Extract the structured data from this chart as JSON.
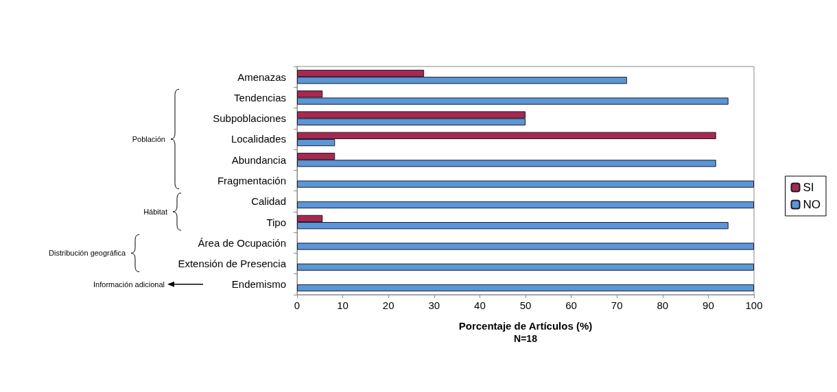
{
  "chart_data": {
    "type": "bar",
    "orientation": "horizontal",
    "xlabel": "Porcentaje de Artículos (%)",
    "categories": [
      "Amenazas",
      "Tendencias",
      "Subpoblaciones",
      "Localidades",
      "Abundancia",
      "Fragmentación",
      "Calidad",
      "Tipo",
      "Área de Ocupación",
      "Extensión de Presencia",
      "Endemismo"
    ],
    "series": [
      {
        "name": "SI",
        "color": "#a8294f",
        "values": [
          27.8,
          5.6,
          50,
          91.7,
          8.3,
          0,
          0,
          5.6,
          0,
          0,
          0
        ]
      },
      {
        "name": "NO",
        "color": "#5b96d6",
        "values": [
          72.2,
          94.4,
          50,
          8.3,
          91.7,
          100,
          100,
          94.4,
          100,
          100,
          100
        ]
      }
    ],
    "xlim": [
      0,
      100
    ],
    "xticks": [
      0,
      10,
      20,
      30,
      40,
      50,
      60,
      70,
      80,
      90,
      100
    ],
    "grid": false,
    "legend": "right",
    "annotations": [
      "Población",
      "Hábitat",
      "Distribución geográfica",
      "Información adicional",
      "N=18"
    ]
  }
}
